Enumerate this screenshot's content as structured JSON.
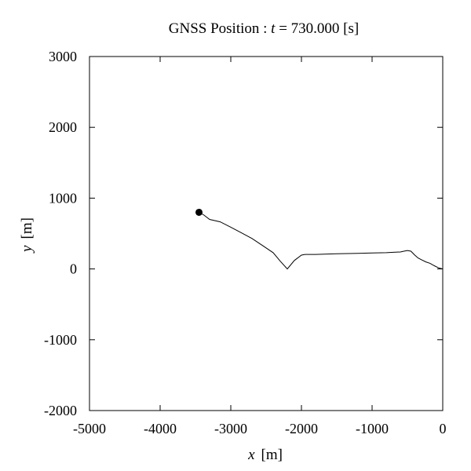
{
  "chart_data": {
    "type": "line",
    "title_parts": {
      "prefix": "GNSS Position : ",
      "var": "t",
      "suffix": " = 730.000 [s]"
    },
    "xlabel_parts": {
      "var": "x",
      "unit": "[m]"
    },
    "ylabel_parts": {
      "var": "y",
      "unit": "[m]"
    },
    "xlim": [
      -5000,
      0
    ],
    "ylim": [
      -2000,
      3000
    ],
    "xticks": [
      -5000,
      -4000,
      -3000,
      -2000,
      -1000,
      0
    ],
    "yticks": [
      -2000,
      -1000,
      0,
      1000,
      2000,
      3000
    ],
    "xtick_labels": [
      "-5000",
      "-4000",
      "-3000",
      "-2000",
      "-1000",
      "0"
    ],
    "ytick_labels": [
      "-2000",
      "-1000",
      "0",
      "1000",
      "2000",
      "3000"
    ],
    "grid": false,
    "series": [
      {
        "color": "#000000",
        "points": [
          [
            0,
            0
          ],
          [
            -60,
            15
          ],
          [
            -120,
            45
          ],
          [
            -180,
            80
          ],
          [
            -240,
            100
          ],
          [
            -300,
            130
          ],
          [
            -350,
            155
          ],
          [
            -400,
            200
          ],
          [
            -450,
            250
          ],
          [
            -500,
            260
          ],
          [
            -550,
            250
          ],
          [
            -600,
            240
          ],
          [
            -700,
            235
          ],
          [
            -800,
            230
          ],
          [
            -1000,
            225
          ],
          [
            -1200,
            220
          ],
          [
            -1500,
            215
          ],
          [
            -1800,
            205
          ],
          [
            -1950,
            205
          ],
          [
            -2000,
            195
          ],
          [
            -2100,
            120
          ],
          [
            -2200,
            0
          ],
          [
            -2300,
            110
          ],
          [
            -2400,
            230
          ],
          [
            -2550,
            330
          ],
          [
            -2700,
            430
          ],
          [
            -2850,
            510
          ],
          [
            -3000,
            590
          ],
          [
            -3150,
            665
          ],
          [
            -3300,
            700
          ],
          [
            -3380,
            760
          ],
          [
            -3450,
            800
          ]
        ]
      }
    ],
    "current_position": {
      "x": -3450,
      "y": 800
    }
  }
}
